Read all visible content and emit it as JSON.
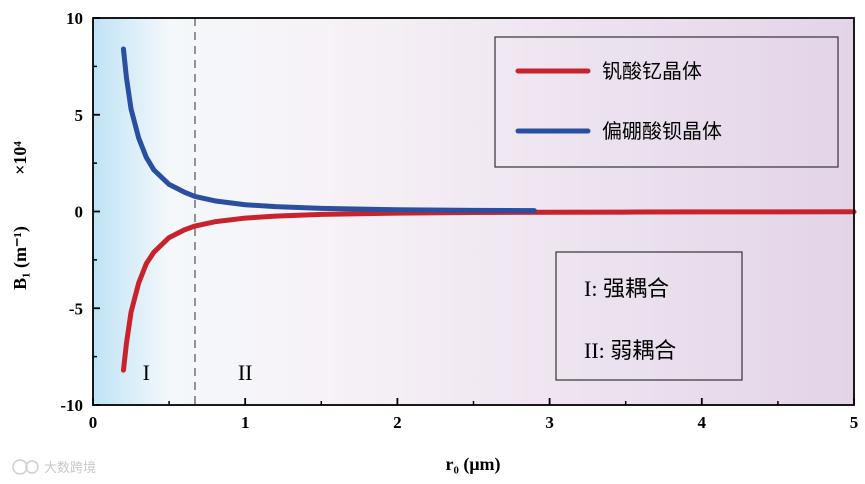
{
  "chart_data": {
    "type": "line",
    "title": "",
    "xlabel": "r₀ (μm)",
    "ylabel": "B₁ (m⁻¹)",
    "y_multiplier": "×10⁴",
    "xlim": [
      0,
      5
    ],
    "ylim": [
      -10,
      10
    ],
    "x_ticks": [
      "0",
      "1",
      "2",
      "3",
      "4",
      "5"
    ],
    "y_ticks": [
      "10",
      "5",
      "0",
      "-5",
      "-10"
    ],
    "grid": false,
    "legend_position": "top-right",
    "series": [
      {
        "name": "钒酸钇晶体",
        "color": "#c8232c",
        "x": [
          0.2,
          0.22,
          0.25,
          0.3,
          0.35,
          0.4,
          0.5,
          0.6,
          0.67,
          0.8,
          1.0,
          1.2,
          1.5,
          2.0,
          2.5,
          3.0,
          3.5,
          4.0,
          4.5,
          5.0
        ],
        "y": [
          -8.2,
          -6.8,
          -5.2,
          -3.7,
          -2.7,
          -2.1,
          -1.35,
          -0.95,
          -0.75,
          -0.53,
          -0.34,
          -0.24,
          -0.15,
          -0.085,
          -0.055,
          -0.04,
          -0.03,
          -0.022,
          -0.017,
          -0.014
        ]
      },
      {
        "name": "偏硼酸钡晶体",
        "color": "#2a4fa0",
        "x": [
          0.2,
          0.22,
          0.25,
          0.3,
          0.35,
          0.4,
          0.5,
          0.6,
          0.67,
          0.8,
          1.0,
          1.2,
          1.5,
          2.0,
          2.5,
          2.9
        ],
        "y": [
          8.4,
          6.9,
          5.3,
          3.8,
          2.8,
          2.15,
          1.4,
          1.0,
          0.78,
          0.55,
          0.35,
          0.25,
          0.16,
          0.09,
          0.058,
          0.044
        ]
      }
    ],
    "regions": [
      {
        "label": "I",
        "x": 0.35,
        "y": -8.7
      },
      {
        "label": "II",
        "x": 1.0,
        "y": -8.7
      }
    ],
    "divider_x": 0.67,
    "region_legend": [
      "I:  强耦合",
      "II: 弱耦合"
    ],
    "colors": {
      "left_bg": "#bfe3f5",
      "right_bg": "#e3d4e8"
    }
  },
  "watermark": "大数跨境"
}
